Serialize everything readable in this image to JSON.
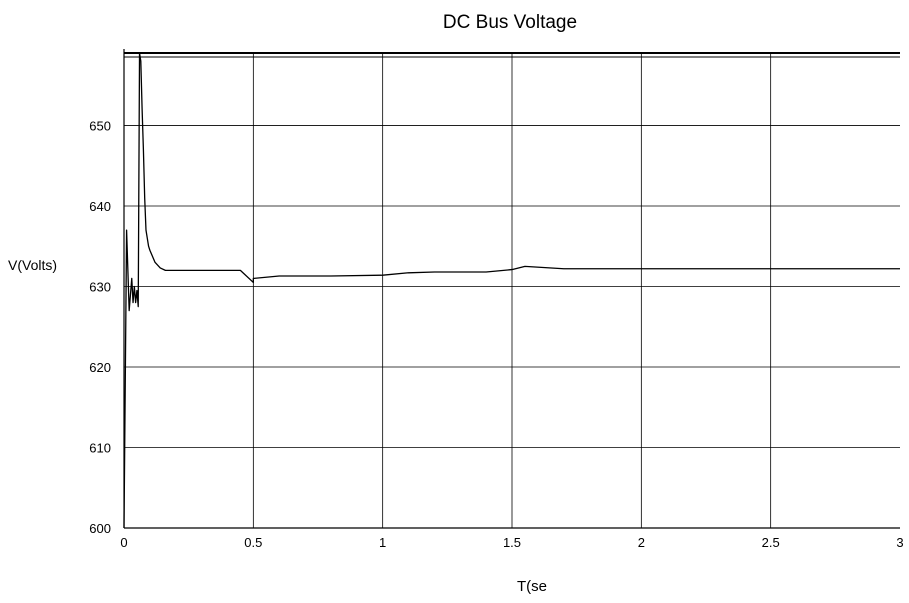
{
  "chart_data": {
    "type": "line",
    "title": "DC Bus Voltage",
    "xlabel": "T(se",
    "ylabel": "V(Volts)",
    "xlim": [
      0,
      3
    ],
    "ylim": [
      600,
      659
    ],
    "x_ticks": [
      0,
      0.5,
      1,
      1.5,
      2,
      2.5,
      3
    ],
    "x_tick_labels": [
      "0",
      "0.5",
      "1",
      "1.5",
      "2",
      "2.5",
      "3"
    ],
    "y_ticks": [
      600,
      610,
      620,
      630,
      640,
      650
    ],
    "y_tick_labels": [
      "600",
      "610",
      "620",
      "630",
      "640",
      "650"
    ],
    "grid": true,
    "series": [
      {
        "color": "#000000",
        "x": [
          0,
          0.01,
          0.02,
          0.03,
          0.035,
          0.04,
          0.045,
          0.05,
          0.055,
          0.06,
          0.065,
          0.07,
          0.075,
          0.08,
          0.085,
          0.09,
          0.095,
          0.1,
          0.12,
          0.14,
          0.16,
          0.18,
          0.2,
          0.3,
          0.45,
          0.5,
          0.5,
          0.6,
          0.8,
          1.0,
          1.1,
          1.2,
          1.4,
          1.5,
          1.55,
          1.7,
          2.0,
          2.5,
          3.0
        ],
        "y": [
          600,
          637,
          627,
          631,
          628,
          630,
          628,
          629.5,
          627.5,
          659,
          658,
          652,
          647,
          641,
          637,
          636,
          635,
          634.5,
          633,
          632.3,
          632,
          632,
          632,
          632,
          632,
          630.5,
          631,
          631.3,
          631.3,
          631.4,
          631.7,
          631.8,
          631.8,
          632.1,
          632.5,
          632.2,
          632.2,
          632.2,
          632.2
        ]
      }
    ]
  }
}
